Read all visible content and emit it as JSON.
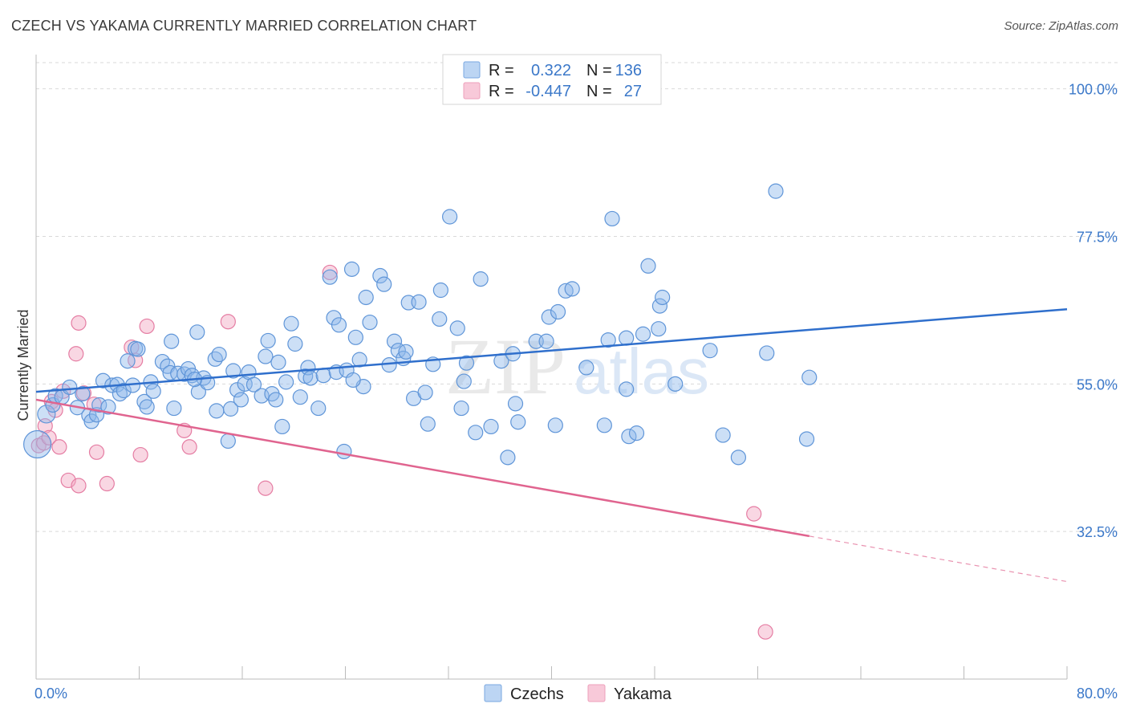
{
  "title": "CZECH VS YAKAMA CURRENTLY MARRIED CORRELATION CHART",
  "source": "Source: ZipAtlas.com",
  "watermark": {
    "zip": "ZIP",
    "atlas": "atlas"
  },
  "legend_top": {
    "rows": [
      {
        "r_label": "R =",
        "r_value": "0.322",
        "n_label": "N =",
        "n_value": "136",
        "color": "#8db7ea"
      },
      {
        "r_label": "R =",
        "r_value": "-0.447",
        "n_label": "N =",
        "n_value": "27",
        "color": "#f2a7c1"
      }
    ]
  },
  "legend_bottom": [
    {
      "label": "Czechs",
      "color": "#8db7ea"
    },
    {
      "label": "Yakama",
      "color": "#f2a7c1"
    }
  ],
  "colors": {
    "czech": "#8db7ea",
    "czech_stroke": "#5f95d8",
    "czech_line": "#2f6fcc",
    "yakama": "#f2a7c1",
    "yakama_stroke": "#e57da3",
    "yakama_line": "#e0648f",
    "tick_label": "#3b78c9",
    "grid": "#d9d9d9"
  },
  "chart_data": {
    "type": "scatter",
    "title": "CZECH VS YAKAMA CURRENTLY MARRIED CORRELATION CHART",
    "xlabel": "",
    "ylabel": "Currently Married",
    "xlim": [
      0,
      80
    ],
    "ylim": [
      10,
      104
    ],
    "x_ticks": [
      0.0,
      80.0
    ],
    "x_tick_labels": [
      "0.0%",
      "80.0%"
    ],
    "y_ticks": [
      32.5,
      55.0,
      77.5,
      100.0
    ],
    "y_tick_labels": [
      "32.5%",
      "55.0%",
      "77.5%",
      "100.0%"
    ],
    "grid": true,
    "legend_position": "top-center",
    "series": [
      {
        "name": "Czechs",
        "points": [
          [
            0.1,
            45.8
          ],
          [
            0.8,
            50.4
          ],
          [
            1.3,
            51.8
          ],
          [
            1.5,
            53.2
          ],
          [
            2.0,
            53.0
          ],
          [
            2.6,
            54.5
          ],
          [
            3.2,
            51.4
          ],
          [
            3.6,
            53.5
          ],
          [
            4.1,
            50.2
          ],
          [
            4.3,
            49.3
          ],
          [
            4.7,
            50.3
          ],
          [
            4.9,
            51.8
          ],
          [
            5.6,
            51.5
          ],
          [
            5.2,
            55.5
          ],
          [
            5.9,
            54.8
          ],
          [
            6.3,
            54.9
          ],
          [
            6.5,
            53.5
          ],
          [
            6.8,
            54.0
          ],
          [
            7.1,
            58.5
          ],
          [
            7.5,
            54.8
          ],
          [
            7.7,
            60.4
          ],
          [
            7.9,
            60.3
          ],
          [
            8.4,
            52.3
          ],
          [
            8.6,
            51.5
          ],
          [
            8.9,
            55.3
          ],
          [
            9.1,
            53.9
          ],
          [
            9.8,
            58.4
          ],
          [
            10.2,
            57.7
          ],
          [
            10.4,
            56.7
          ],
          [
            10.5,
            61.5
          ],
          [
            10.7,
            51.3
          ],
          [
            11.0,
            56.6
          ],
          [
            11.5,
            56.5
          ],
          [
            11.8,
            57.3
          ],
          [
            12.1,
            56.3
          ],
          [
            12.5,
            62.9
          ],
          [
            12.6,
            53.8
          ],
          [
            13.0,
            55.9
          ],
          [
            13.3,
            55.2
          ],
          [
            13.9,
            58.8
          ],
          [
            14.0,
            50.9
          ],
          [
            14.2,
            59.5
          ],
          [
            14.9,
            46.3
          ],
          [
            15.1,
            51.2
          ],
          [
            15.3,
            57.0
          ],
          [
            15.6,
            54.1
          ],
          [
            15.9,
            52.6
          ],
          [
            16.2,
            55.0
          ],
          [
            16.5,
            56.8
          ],
          [
            16.9,
            54.9
          ],
          [
            17.5,
            53.2
          ],
          [
            17.8,
            59.2
          ],
          [
            18.0,
            61.6
          ],
          [
            18.3,
            53.5
          ],
          [
            18.6,
            52.6
          ],
          [
            18.8,
            58.3
          ],
          [
            19.1,
            48.5
          ],
          [
            19.4,
            55.3
          ],
          [
            19.8,
            64.2
          ],
          [
            20.1,
            61.1
          ],
          [
            20.5,
            53.0
          ],
          [
            20.9,
            56.2
          ],
          [
            21.1,
            57.5
          ],
          [
            21.3,
            55.9
          ],
          [
            21.9,
            51.3
          ],
          [
            22.3,
            56.3
          ],
          [
            22.8,
            71.3
          ],
          [
            23.1,
            65.1
          ],
          [
            23.3,
            56.8
          ],
          [
            23.5,
            64.0
          ],
          [
            23.9,
            44.7
          ],
          [
            24.1,
            57.1
          ],
          [
            24.5,
            72.5
          ],
          [
            24.8,
            62.1
          ],
          [
            25.1,
            58.7
          ],
          [
            25.4,
            54.6
          ],
          [
            25.6,
            68.2
          ],
          [
            25.9,
            64.4
          ],
          [
            26.7,
            71.5
          ],
          [
            27.0,
            70.2
          ],
          [
            27.4,
            57.9
          ],
          [
            27.8,
            61.5
          ],
          [
            28.1,
            60.1
          ],
          [
            28.5,
            58.9
          ],
          [
            28.7,
            59.9
          ],
          [
            28.9,
            67.4
          ],
          [
            29.3,
            52.8
          ],
          [
            29.7,
            67.5
          ],
          [
            30.2,
            53.7
          ],
          [
            30.4,
            48.9
          ],
          [
            30.8,
            58.0
          ],
          [
            31.3,
            64.9
          ],
          [
            31.4,
            69.3
          ],
          [
            32.1,
            80.5
          ],
          [
            32.7,
            63.5
          ],
          [
            33.0,
            51.3
          ],
          [
            33.2,
            55.4
          ],
          [
            33.4,
            58.2
          ],
          [
            34.1,
            47.6
          ],
          [
            34.5,
            71.0
          ],
          [
            35.3,
            48.5
          ],
          [
            36.1,
            58.5
          ],
          [
            36.6,
            43.8
          ],
          [
            37.0,
            59.6
          ],
          [
            37.4,
            49.2
          ],
          [
            38.8,
            61.5
          ],
          [
            39.6,
            61.5
          ],
          [
            39.8,
            65.2
          ],
          [
            40.3,
            48.7
          ],
          [
            40.5,
            66.0
          ],
          [
            41.1,
            69.2
          ],
          [
            41.6,
            69.5
          ],
          [
            42.7,
            57.5
          ],
          [
            44.1,
            48.7
          ],
          [
            44.4,
            61.7
          ],
          [
            44.7,
            80.2
          ],
          [
            45.8,
            62.0
          ],
          [
            45.8,
            54.2
          ],
          [
            46.0,
            47.0
          ],
          [
            46.6,
            47.5
          ],
          [
            47.1,
            62.6
          ],
          [
            47.5,
            73.0
          ],
          [
            48.3,
            63.4
          ],
          [
            48.4,
            66.9
          ],
          [
            48.6,
            68.2
          ],
          [
            49.6,
            55.0
          ],
          [
            52.3,
            60.1
          ],
          [
            53.3,
            47.2
          ],
          [
            54.5,
            43.8
          ],
          [
            56.7,
            59.7
          ],
          [
            57.4,
            84.4
          ],
          [
            59.8,
            46.6
          ],
          [
            60.0,
            56.0
          ],
          [
            12.3,
            55.7
          ],
          [
            24.6,
            55.6
          ],
          [
            37.2,
            52.0
          ]
        ]
      },
      {
        "name": "Yakama",
        "points": [
          [
            0.2,
            45.6
          ],
          [
            0.6,
            46.0
          ],
          [
            0.7,
            48.6
          ],
          [
            1.0,
            46.8
          ],
          [
            1.2,
            52.3
          ],
          [
            1.5,
            51.0
          ],
          [
            1.8,
            45.4
          ],
          [
            2.1,
            53.9
          ],
          [
            2.5,
            40.3
          ],
          [
            3.1,
            59.6
          ],
          [
            3.3,
            64.3
          ],
          [
            3.3,
            39.5
          ],
          [
            3.7,
            53.6
          ],
          [
            4.5,
            51.9
          ],
          [
            4.7,
            44.6
          ],
          [
            5.5,
            39.8
          ],
          [
            7.4,
            60.6
          ],
          [
            7.7,
            58.6
          ],
          [
            8.1,
            44.2
          ],
          [
            8.6,
            63.8
          ],
          [
            11.5,
            47.9
          ],
          [
            11.9,
            45.4
          ],
          [
            14.9,
            64.5
          ],
          [
            17.8,
            39.1
          ],
          [
            22.8,
            72.0
          ],
          [
            55.7,
            35.2
          ],
          [
            56.6,
            17.2
          ]
        ]
      }
    ],
    "trendlines": [
      {
        "series": "Czechs",
        "x": [
          0,
          80
        ],
        "y": [
          53.8,
          66.4
        ]
      },
      {
        "series": "Yakama",
        "x": [
          0,
          60
        ],
        "y": [
          52.6,
          31.8
        ],
        "dashed_extension_to_x": 80
      }
    ]
  }
}
